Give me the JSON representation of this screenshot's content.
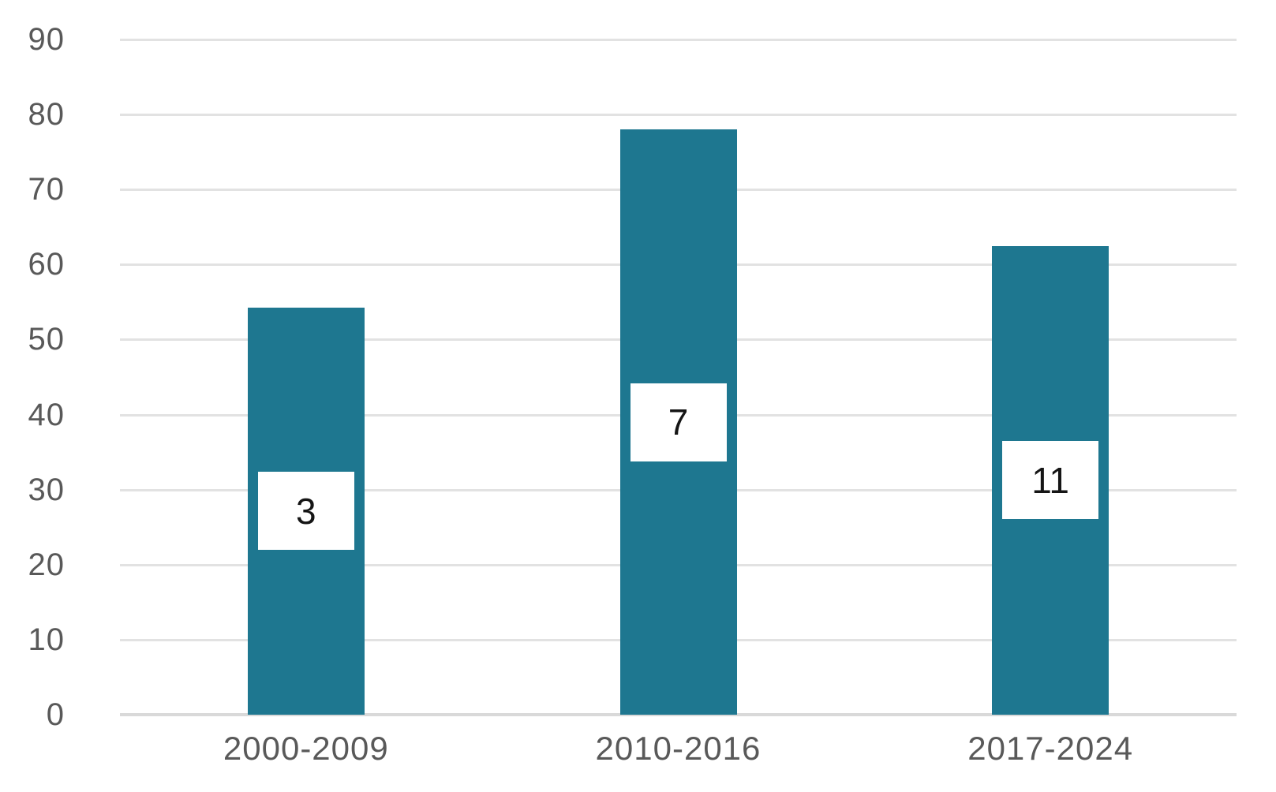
{
  "chart_data": {
    "type": "bar",
    "categories": [
      "2000-2009",
      "2010-2016",
      "2017-2024"
    ],
    "series": [
      {
        "name": "bars",
        "values": [
          54.3,
          78,
          62.5
        ],
        "data_labels": [
          "3",
          "7",
          "11"
        ]
      }
    ],
    "title": "",
    "xlabel": "",
    "ylabel": "",
    "ylim": [
      0,
      90
    ],
    "y_ticks": [
      0,
      10,
      20,
      30,
      40,
      50,
      60,
      70,
      80,
      90
    ],
    "grid": "horizontal",
    "legend": "none",
    "colors": {
      "bar_fill": "#1E7790",
      "gridline": "#E2E2E2",
      "zero_axis_line": "#D9D9D9",
      "tick_label_text": "#595959",
      "data_label_text": "#151515",
      "data_label_box_fill": "#FFFFFF",
      "background": "#FFFFFF"
    }
  }
}
